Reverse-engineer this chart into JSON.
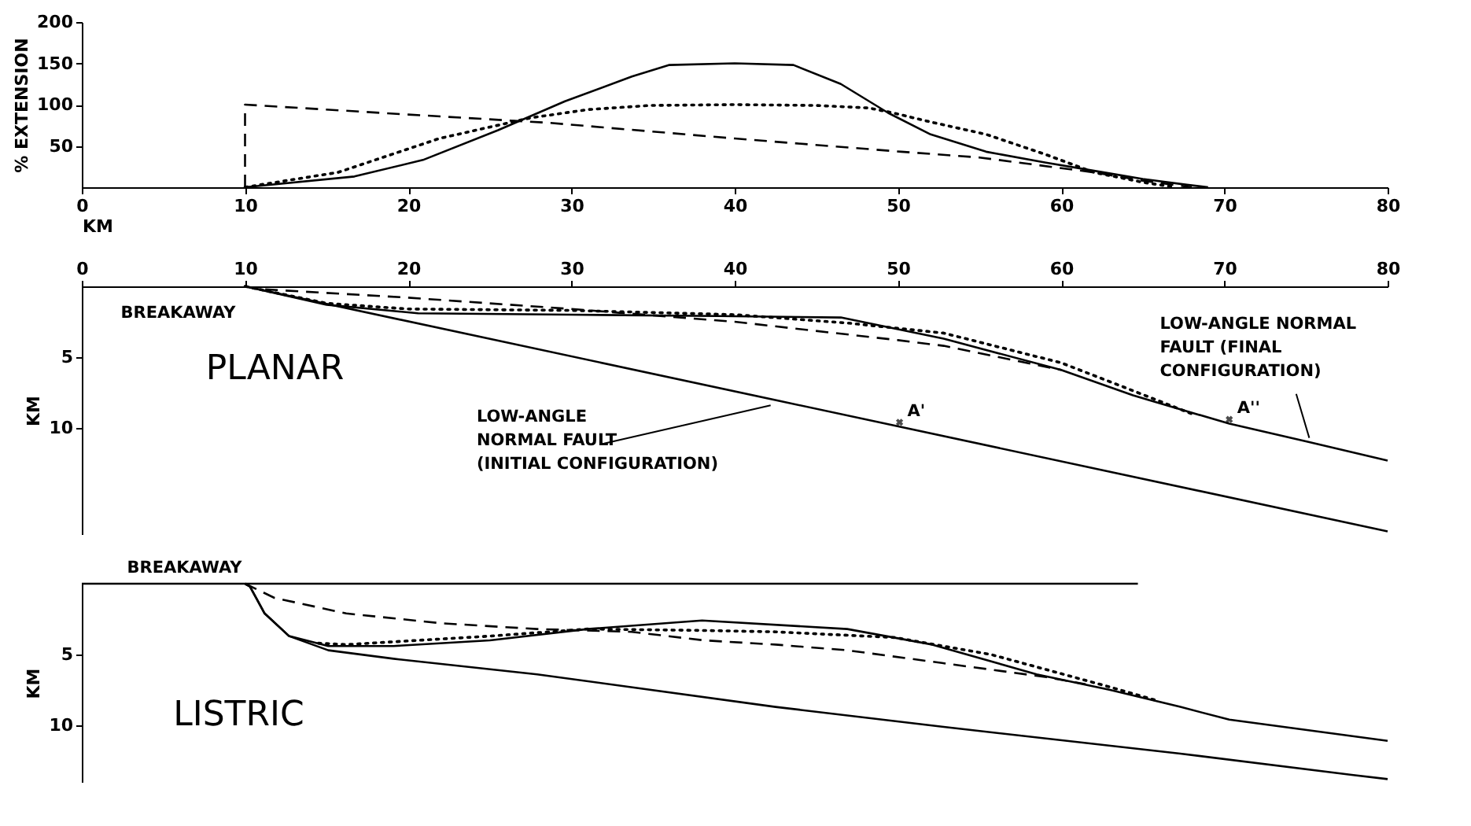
{
  "chart_data": [
    {
      "type": "line",
      "ylabel": "% EXTENSION",
      "xlabel": "KM",
      "xlim": [
        0,
        80
      ],
      "xticks": [
        0,
        10,
        20,
        30,
        40,
        50,
        60,
        70,
        80
      ],
      "ylim": [
        0,
        200
      ],
      "yticks": [
        50,
        100,
        150,
        200
      ],
      "series": [
        {
          "color": "#000000",
          "line_style": "solid",
          "x": [
            10,
            16.7,
            20.9,
            25.5,
            29.6,
            33.7,
            36,
            40,
            43.6,
            46.5,
            49.4,
            52,
            55.4,
            59,
            62.6,
            65,
            67.7,
            69
          ],
          "values": [
            0,
            13,
            33,
            69,
            104,
            134,
            148,
            150,
            148,
            125,
            90,
            64,
            43,
            30,
            18,
            10,
            3,
            0
          ]
        },
        {
          "color": "#000000",
          "line_style": "dotted",
          "x": [
            10,
            15.7,
            21.9,
            27.5,
            31,
            34.8,
            40,
            45,
            48.2,
            49.7,
            52,
            55.4,
            59,
            62,
            65,
            67
          ],
          "values": [
            0,
            18,
            59,
            84,
            94,
            99,
            100,
            99,
            96,
            90,
            79,
            64,
            40,
            18,
            6,
            0
          ]
        },
        {
          "color": "#000000",
          "line_style": "dashed",
          "x": [
            10,
            10,
            20,
            28.6,
            40,
            50.2,
            55,
            62,
            65,
            68
          ],
          "values": [
            0,
            100,
            88,
            78,
            59,
            43,
            36,
            18,
            8,
            0
          ]
        }
      ]
    },
    {
      "type": "line",
      "title": "PLANAR",
      "ylabel": "KM",
      "xlim": [
        0,
        80
      ],
      "xticks": [
        0,
        10,
        20,
        30,
        40,
        50,
        60,
        70,
        80
      ],
      "ylim": [
        17.5,
        0
      ],
      "yticks": [
        5,
        10
      ],
      "series": [
        {
          "color": "#000000",
          "line_style": "solid",
          "x": [
            10,
            80
          ],
          "values": [
            0,
            17.3
          ]
        },
        {
          "color": "#000000",
          "line_style": "solid",
          "x": [
            10,
            15,
            20.6,
            30,
            39,
            46.5,
            52.8,
            60,
            64.4,
            70.3,
            75.2,
            80
          ],
          "values": [
            0,
            1.3,
            1.9,
            2.0,
            2.1,
            2.2,
            3.7,
            5.9,
            7.7,
            9.7,
            11.0,
            12.3
          ]
        },
        {
          "color": "#000000",
          "line_style": "dotted",
          "x": [
            10,
            15,
            20,
            30,
            40,
            47,
            52.8,
            60,
            63.8,
            68
          ],
          "values": [
            0,
            1.2,
            1.6,
            1.7,
            2.0,
            2.6,
            3.3,
            5.4,
            7.1,
            9.0
          ]
        },
        {
          "color": "#000000",
          "line_style": "dashed",
          "x": [
            10,
            11,
            20,
            30,
            40,
            50,
            52.8,
            60
          ],
          "values": [
            0,
            0.2,
            0.8,
            1.6,
            2.5,
            3.8,
            4.2,
            5.9
          ]
        }
      ],
      "annotations": [
        {
          "text": "BREAKAWAY",
          "x": 10,
          "y": 0
        },
        {
          "text": "LOW-ANGLE\nNORMAL FAULT\n(INITIAL CONFIGURATION)",
          "x": 42.5,
          "y": 8.0
        },
        {
          "text": "A'",
          "x": 50.1,
          "y": 9.6
        },
        {
          "text": "A''",
          "x": 70.3,
          "y": 9.4
        },
        {
          "text": "LOW-ANGLE NORMAL\nFAULT (FINAL\nCONFIGURATION)",
          "x": 75.2,
          "y": 11.0
        }
      ]
    },
    {
      "type": "line",
      "title": "LISTRIC",
      "ylabel": "KM",
      "xlim": [
        0,
        80
      ],
      "ylim": [
        14,
        0
      ],
      "yticks": [
        5,
        10
      ],
      "tick_labels": "y",
      "series": [
        {
          "color": "#000000",
          "line_style": "solid",
          "x": [
            0,
            64.7
          ],
          "values": [
            0,
            0
          ]
        },
        {
          "color": "#000000",
          "line_style": "solid",
          "x": [
            10,
            10.3,
            11.2,
            12.7,
            15.1,
            19.1,
            27.9,
            42.5,
            52.7,
            67.3,
            77.8,
            80
          ],
          "values": [
            0,
            0.2,
            2.1,
            3.7,
            4.7,
            5.3,
            6.4,
            8.7,
            10.1,
            12.0,
            13.5,
            13.8
          ]
        },
        {
          "color": "#000000",
          "line_style": "solid",
          "x": [
            10,
            10.3,
            11.2,
            12.7,
            15.1,
            19.1,
            25,
            31,
            38,
            46.9,
            52.1,
            58.5,
            63,
            67.3,
            70.3,
            80
          ],
          "values": [
            0,
            0.2,
            2.1,
            3.7,
            4.4,
            4.4,
            4.0,
            3.2,
            2.6,
            3.2,
            4.3,
            6.4,
            7.5,
            8.7,
            9.6,
            11.1
          ]
        },
        {
          "color": "#000000",
          "line_style": "dotted",
          "x": [
            14.5,
            16.2,
            25,
            31,
            38,
            42.5,
            49.8,
            55.7,
            63,
            66
          ],
          "values": [
            4.2,
            4.3,
            3.7,
            3.2,
            3.3,
            3.4,
            3.8,
            5.0,
            7.3,
            8.3
          ]
        },
        {
          "color": "#000000",
          "line_style": "dashed",
          "x": [
            10,
            11.8,
            16.2,
            22.1,
            27.9,
            33.7,
            38.1,
            42.5,
            46.9,
            52.7,
            59.1,
            61.5
          ],
          "values": [
            0,
            1.0,
            2.1,
            2.8,
            3.2,
            3.4,
            4.0,
            4.3,
            4.7,
            5.6,
            6.6,
            7.1
          ]
        }
      ],
      "annotations": [
        {
          "text": "BREAKAWAY",
          "x": 10,
          "y": 0
        }
      ]
    }
  ]
}
